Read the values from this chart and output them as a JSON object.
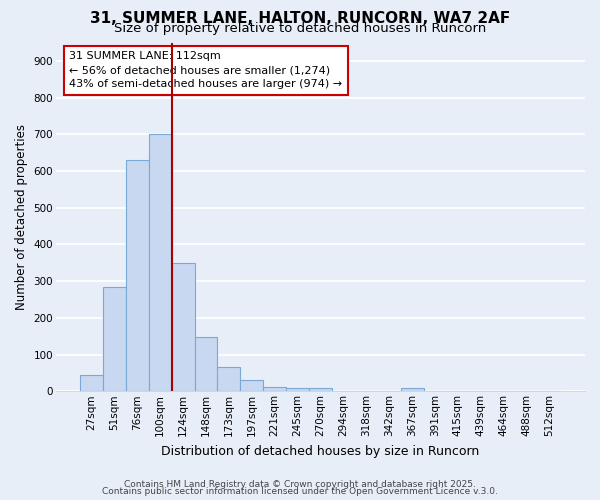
{
  "title_line1": "31, SUMMER LANE, HALTON, RUNCORN, WA7 2AF",
  "title_line2": "Size of property relative to detached houses in Runcorn",
  "xlabel": "Distribution of detached houses by size in Runcorn",
  "ylabel": "Number of detached properties",
  "bar_labels": [
    "27sqm",
    "51sqm",
    "76sqm",
    "100sqm",
    "124sqm",
    "148sqm",
    "173sqm",
    "197sqm",
    "221sqm",
    "245sqm",
    "270sqm",
    "294sqm",
    "318sqm",
    "342sqm",
    "367sqm",
    "391sqm",
    "415sqm",
    "439sqm",
    "464sqm",
    "488sqm",
    "512sqm"
  ],
  "bar_values": [
    45,
    283,
    630,
    700,
    350,
    148,
    65,
    30,
    12,
    10,
    10,
    0,
    0,
    0,
    8,
    0,
    0,
    0,
    0,
    0,
    0
  ],
  "bar_color": "#c8d8f0",
  "bar_edgecolor": "#7aaad4",
  "background_color": "#e8eef8",
  "grid_color": "#ffffff",
  "vline_x": 3.5,
  "vline_color": "#aa0000",
  "annotation_text_line1": "31 SUMMER LANE: 112sqm",
  "annotation_text_line2": "← 56% of detached houses are smaller (1,274)",
  "annotation_text_line3": "43% of semi-detached houses are larger (974) →",
  "annotation_box_color": "#ffffff",
  "annotation_box_edgecolor": "#cc0000",
  "ylim": [
    0,
    950
  ],
  "yticks": [
    0,
    100,
    200,
    300,
    400,
    500,
    600,
    700,
    800,
    900
  ],
  "footer_line1": "Contains HM Land Registry data © Crown copyright and database right 2025.",
  "footer_line2": "Contains public sector information licensed under the Open Government Licence v.3.0.",
  "title_fontsize": 11,
  "subtitle_fontsize": 9.5,
  "tick_fontsize": 7.5,
  "ylabel_fontsize": 8.5,
  "xlabel_fontsize": 9,
  "annotation_fontsize": 8,
  "footer_fontsize": 6.5
}
